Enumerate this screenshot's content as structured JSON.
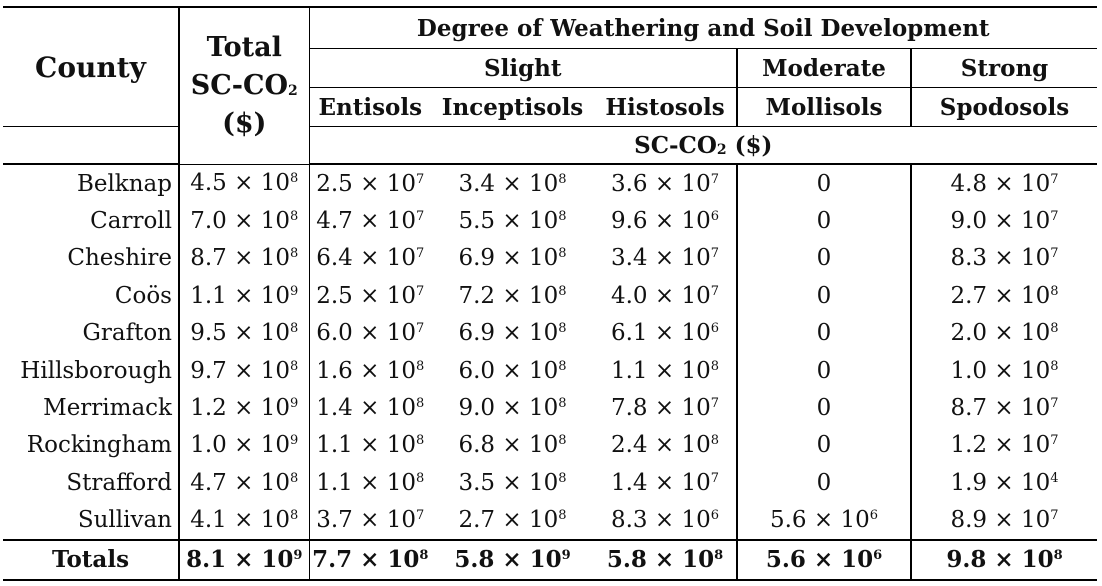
{
  "header": {
    "county": "County",
    "total_line1": "Total",
    "total_line2_main": "SC-CO",
    "total_line2_sub": "2",
    "total_line3": "($)",
    "degree": "Degree of Weathering and Soil Development",
    "slight": "Slight",
    "moderate": "Moderate",
    "strong": "Strong",
    "entisols": "Entisols",
    "inceptisols": "Inceptisols",
    "histosols": "Histosols",
    "mollisols": "Mollisols",
    "spodosols": "Spodosols",
    "unit_main": "SC-CO",
    "unit_sub": "2",
    "unit_tail": " ($)"
  },
  "rows": [
    {
      "county": "Belknap",
      "cells": [
        [
          "4.5 × 10",
          "8"
        ],
        [
          "2.5 × 10",
          "7"
        ],
        [
          "3.4 × 10",
          "8"
        ],
        [
          "3.6 × 10",
          "7"
        ],
        [
          "0",
          ""
        ],
        [
          "4.8 × 10",
          "7"
        ]
      ]
    },
    {
      "county": "Carroll",
      "cells": [
        [
          "7.0 × 10",
          "8"
        ],
        [
          "4.7 × 10",
          "7"
        ],
        [
          "5.5 × 10",
          "8"
        ],
        [
          "9.6 × 10",
          "6"
        ],
        [
          "0",
          ""
        ],
        [
          "9.0 × 10",
          "7"
        ]
      ]
    },
    {
      "county": "Cheshire",
      "cells": [
        [
          "8.7 × 10",
          "8"
        ],
        [
          "6.4 × 10",
          "7"
        ],
        [
          "6.9 × 10",
          "8"
        ],
        [
          "3.4 × 10",
          "7"
        ],
        [
          "0",
          ""
        ],
        [
          "8.3 × 10",
          "7"
        ]
      ]
    },
    {
      "county": "Coös",
      "cells": [
        [
          "1.1 × 10",
          "9"
        ],
        [
          "2.5 × 10",
          "7"
        ],
        [
          "7.2 × 10",
          "8"
        ],
        [
          "4.0 × 10",
          "7"
        ],
        [
          "0",
          ""
        ],
        [
          "2.7 × 10",
          "8"
        ]
      ]
    },
    {
      "county": "Grafton",
      "cells": [
        [
          "9.5 × 10",
          "8"
        ],
        [
          "6.0 × 10",
          "7"
        ],
        [
          "6.9 × 10",
          "8"
        ],
        [
          "6.1 × 10",
          "6"
        ],
        [
          "0",
          ""
        ],
        [
          "2.0 × 10",
          "8"
        ]
      ]
    },
    {
      "county": "Hillsborough",
      "cells": [
        [
          "9.7 × 10",
          "8"
        ],
        [
          "1.6 × 10",
          "8"
        ],
        [
          "6.0 × 10",
          "8"
        ],
        [
          "1.1 × 10",
          "8"
        ],
        [
          "0",
          ""
        ],
        [
          "1.0 × 10",
          "8"
        ]
      ]
    },
    {
      "county": "Merrimack",
      "cells": [
        [
          "1.2 × 10",
          "9"
        ],
        [
          "1.4 × 10",
          "8"
        ],
        [
          "9.0 × 10",
          "8"
        ],
        [
          "7.8 × 10",
          "7"
        ],
        [
          "0",
          ""
        ],
        [
          "8.7 × 10",
          "7"
        ]
      ]
    },
    {
      "county": "Rockingham",
      "cells": [
        [
          "1.0 × 10",
          "9"
        ],
        [
          "1.1 × 10",
          "8"
        ],
        [
          "6.8 × 10",
          "8"
        ],
        [
          "2.4 × 10",
          "8"
        ],
        [
          "0",
          ""
        ],
        [
          "1.2 × 10",
          "7"
        ]
      ]
    },
    {
      "county": "Strafford",
      "cells": [
        [
          "4.7 × 10",
          "8"
        ],
        [
          "1.1 × 10",
          "8"
        ],
        [
          "3.5 × 10",
          "8"
        ],
        [
          "1.4 × 10",
          "7"
        ],
        [
          "0",
          ""
        ],
        [
          "1.9 × 10",
          "4"
        ]
      ]
    },
    {
      "county": "Sullivan",
      "cells": [
        [
          "4.1 × 10",
          "8"
        ],
        [
          "3.7 × 10",
          "7"
        ],
        [
          "2.7 × 10",
          "8"
        ],
        [
          "8.3 × 10",
          "6"
        ],
        [
          "5.6 × 10",
          "6"
        ],
        [
          "8.9 × 10",
          "7"
        ]
      ]
    }
  ],
  "totals": {
    "county": "Totals",
    "cells": [
      [
        "8.1 × 10",
        "9"
      ],
      [
        "7.7 × 10",
        "8"
      ],
      [
        "5.8 × 10",
        "9"
      ],
      [
        "5.8 × 10",
        "8"
      ],
      [
        "5.6 × 10",
        "6"
      ],
      [
        "9.8 × 10",
        "8"
      ]
    ]
  }
}
